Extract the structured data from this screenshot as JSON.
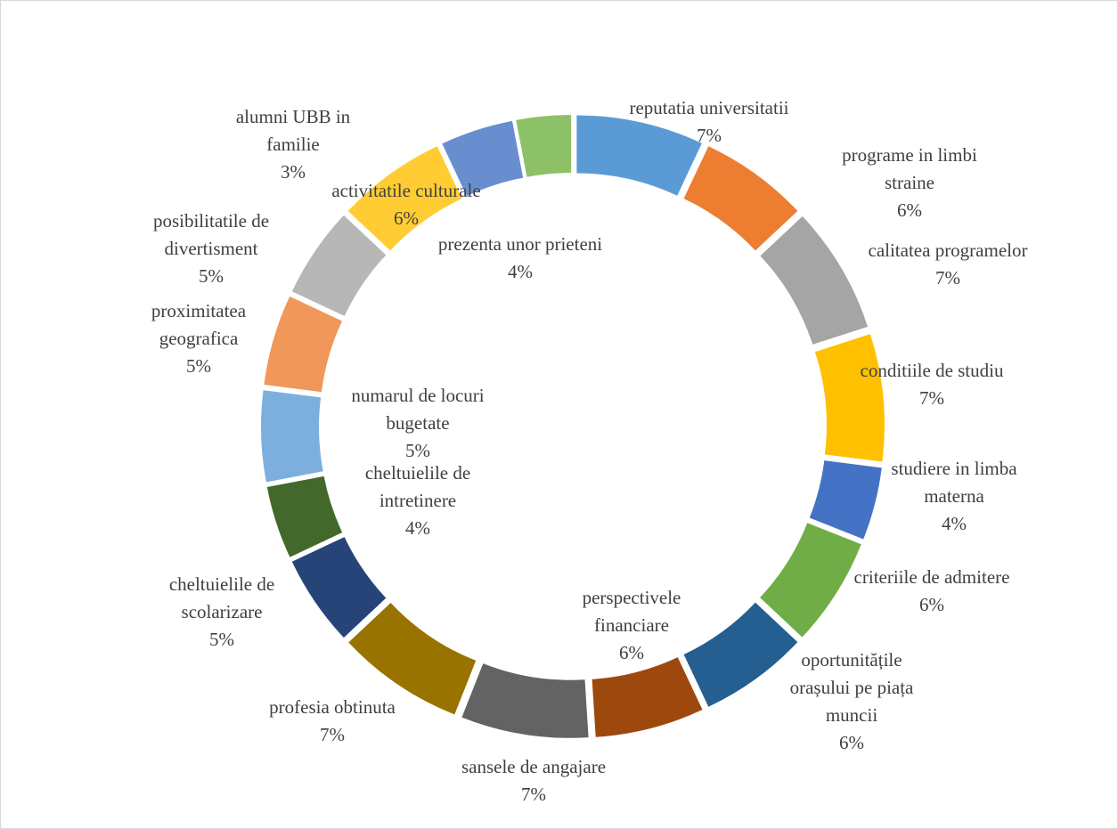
{
  "chart_data": {
    "type": "doughnut",
    "categories": [
      "reputatia universitatii",
      "programe in limbi straine",
      "calitatea programelor",
      "conditiile de studiu",
      "studiere in limba materna",
      "criteriile de admitere",
      "oportunitățile orașului pe piața muncii",
      "perspectivele financiare",
      "sansele de angajare",
      "profesia obtinuta",
      "cheltuielile de scolarizare",
      "cheltuielile de intretinere",
      "numarul de locuri bugetate",
      "proximitatea geografica",
      "posibilitatile de divertisment",
      "activitatile culturale",
      "prezenta unor prieteni",
      "alumni UBB in familie"
    ],
    "values": [
      7,
      6,
      7,
      7,
      4,
      6,
      6,
      6,
      7,
      7,
      5,
      4,
      5,
      5,
      5,
      6,
      4,
      3
    ],
    "value_labels": [
      "7%",
      "6%",
      "7%",
      "7%",
      "4%",
      "6%",
      "6%",
      "6%",
      "7%",
      "7%",
      "5%",
      "4%",
      "5%",
      "5%",
      "5%",
      "6%",
      "4%",
      "3%"
    ],
    "colors": [
      "#5b9bd5",
      "#ed7d31",
      "#a5a5a5",
      "#ffc000",
      "#4472c4",
      "#70ad47",
      "#255e91",
      "#9e480e",
      "#636363",
      "#997300",
      "#264478",
      "#43682b",
      "#7cafdd",
      "#f1975a",
      "#b7b7b7",
      "#ffcd33",
      "#698ed0",
      "#8cc168"
    ]
  }
}
